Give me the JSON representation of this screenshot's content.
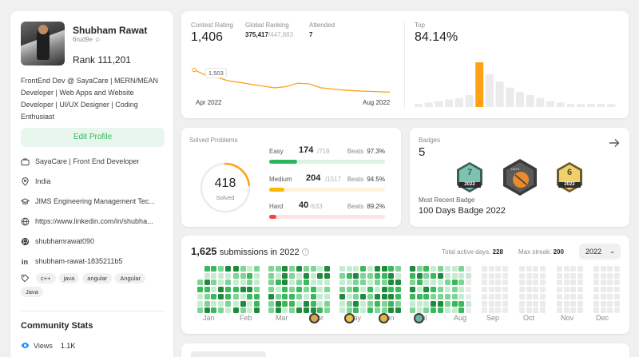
{
  "profile": {
    "name": "Shubham Rawat",
    "username": "6rud9e",
    "rank_label": "Rank",
    "rank_value": "111,201",
    "bio": "FrontEnd Dev @ SayaCare | MERN/MEAN Developer | Web Apps and Website Developer | UI/UX Designer | Coding Enthusiast",
    "edit_label": "Edit Profile",
    "work": "SayaCare | Front End Developer",
    "location": "India",
    "school": "JIMS Engineering Management Tec...",
    "website": "https://www.linkedin.com/in/shubha...",
    "github": "shubhamrawat090",
    "linkedin": "shubham-rawat-1835211b5",
    "skills": [
      "c++",
      "java",
      "angular",
      "Angular",
      "Java"
    ],
    "community_title": "Community Stats",
    "views_label": "Views",
    "views_value": "1.1K"
  },
  "contest": {
    "rating_label": "Contest Rating",
    "rating_value": "1,406",
    "global_label": "Global Ranking",
    "global_value": "375,417",
    "global_total": "/447,883",
    "attended_label": "Attended",
    "attended_value": "7",
    "tooltip_value": "1,503",
    "x_start": "Apr 2022",
    "x_end": "Aug 2022",
    "top_label": "Top",
    "top_value": "84.14%",
    "rating_series": [
      1503,
      1480,
      1470,
      1455,
      1448,
      1440,
      1432,
      1425,
      1430,
      1445,
      1442,
      1425,
      1420,
      1415,
      1412,
      1410,
      1408,
      1406
    ],
    "distribution": [
      2,
      3,
      4,
      5,
      6,
      8,
      30,
      22,
      17,
      13,
      10,
      8,
      6,
      4,
      3,
      2,
      2,
      2,
      2,
      2
    ],
    "highlight_index": 6,
    "accent_color": "#ffa116"
  },
  "solved": {
    "title": "Solved Problems",
    "total": "418",
    "total_label": "Solved",
    "beats_label": "Beats",
    "rows": [
      {
        "label": "Easy",
        "count": "174",
        "total": "/718",
        "beats": "97.3%",
        "fraction": 0.242,
        "color": "#2db55d",
        "bg": "#dcf3e5"
      },
      {
        "label": "Medium",
        "count": "204",
        "total": "/1517",
        "beats": "94.5%",
        "fraction": 0.134,
        "color": "#ffb800",
        "bg": "#fff3db"
      },
      {
        "label": "Hard",
        "count": "40",
        "total": "/633",
        "beats": "89.2%",
        "fraction": 0.063,
        "color": "#ef4743",
        "bg": "#fde4e4"
      }
    ]
  },
  "badges": {
    "title": "Badges",
    "count": "5",
    "recent_label": "Most Recent Badge",
    "recent_name": "100 Days Badge 2022",
    "badge_items": [
      {
        "num": "7",
        "year": "2022",
        "color": "#6fb3a4"
      },
      {
        "num": "DAYS",
        "year": "",
        "color": "#e08a3c"
      },
      {
        "num": "6",
        "year": "2022",
        "color": "#e7c33f"
      }
    ]
  },
  "submissions": {
    "count": "1,625",
    "label": "submissions in 2022",
    "active_label": "Total active days:",
    "active_value": "228",
    "streak_label": "Max streak:",
    "streak_value": "200",
    "year": "2022",
    "months": [
      "Jan",
      "Feb",
      "Mar",
      "Apr",
      "May",
      "Jun",
      "Jul",
      "Aug",
      "Sep",
      "Oct",
      "Nov",
      "Dec"
    ],
    "badge_month_markers": [
      "Apr",
      "May",
      "Jun",
      "Jul"
    ]
  }
}
